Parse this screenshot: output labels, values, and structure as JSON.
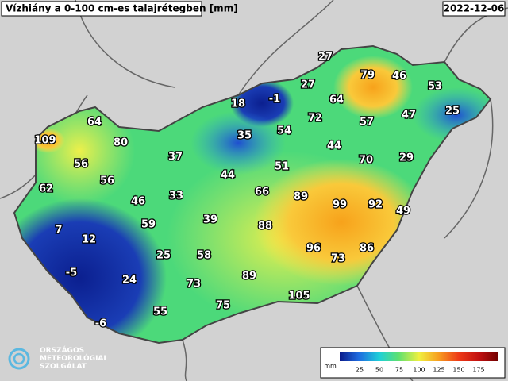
{
  "header": {
    "title": "Vízhiány a 0-100 cm-es talajrétegben [mm]",
    "date": "2022-12-06"
  },
  "stations": [
    27,
    79,
    46,
    53,
    18,
    -1,
    27,
    64,
    72,
    57,
    47,
    25,
    64,
    54,
    109,
    80,
    35,
    44,
    37,
    56,
    51,
    70,
    29,
    44,
    56,
    62,
    66,
    33,
    46,
    89,
    99,
    92,
    49,
    39,
    59,
    7,
    88,
    12,
    96,
    73,
    86,
    25,
    58,
    -5,
    89,
    24,
    73,
    105,
    75,
    55,
    -6
  ],
  "legend": {
    "unit": "mm",
    "ticks": [
      25,
      50,
      75,
      100,
      125,
      150,
      175
    ]
  },
  "logo": {
    "lines": [
      "ORSZÁGOS",
      "METEOROLÓGIAI",
      "SZOLGÁLAT"
    ]
  }
}
